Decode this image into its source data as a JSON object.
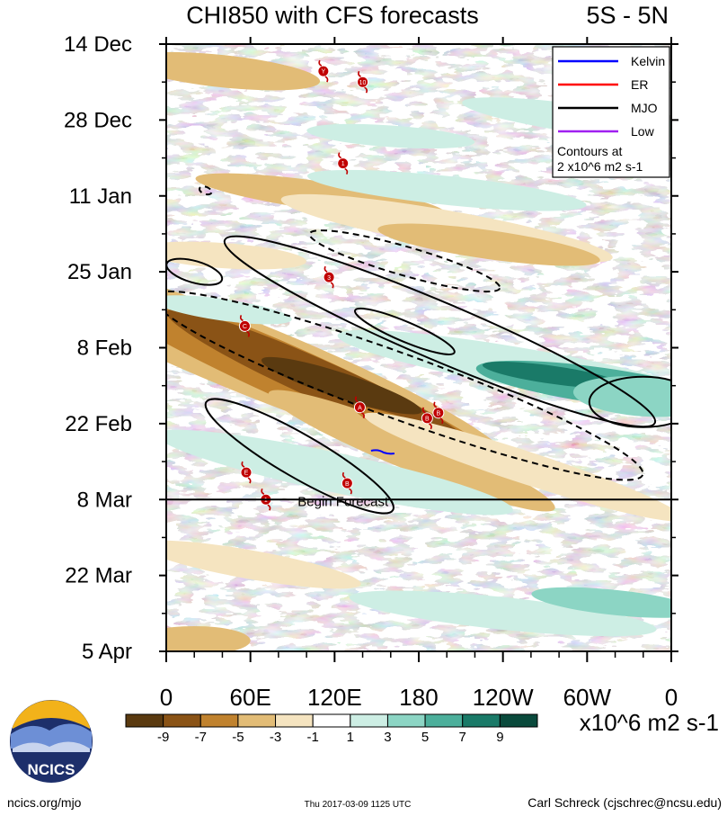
{
  "chart_data": {
    "type": "heatmap",
    "title": "CHI850 with CFS forecasts",
    "region": "5S - 5N",
    "x_tick_labels": [
      "0",
      "60E",
      "120E",
      "180",
      "120W",
      "60W",
      "0"
    ],
    "x_range_deg_east": [
      0,
      360
    ],
    "y_tick_labels": [
      "14 Dec",
      "28 Dec",
      "11 Jan",
      "25 Jan",
      "8 Feb",
      "22 Feb",
      "8 Mar",
      "22 Mar",
      "5 Apr"
    ],
    "y_range": [
      "14 Dec",
      "5 Apr"
    ],
    "forecast_start": "8 Mar",
    "forecast_label": "Begin Forecast",
    "legend": {
      "position": "top-right",
      "entries": [
        {
          "name": "Kelvin",
          "color": "#0000ff"
        },
        {
          "name": "ER",
          "color": "#ff0000"
        },
        {
          "name": "MJO",
          "color": "#000000"
        },
        {
          "name": "Low",
          "color": "#a020f0"
        }
      ],
      "note_line1": "Contours at",
      "note_line2": "2 x10^6 m2 s-1"
    },
    "colorbar": {
      "labels": [
        "-9",
        "-7",
        "-5",
        "-3",
        "-1",
        "1",
        "3",
        "5",
        "7",
        "9"
      ],
      "colors": [
        "#5a3a10",
        "#8a5316",
        "#c0822e",
        "#e2bc76",
        "#f5e4c0",
        "#ffffff",
        "#cdeee4",
        "#8cd5c4",
        "#4caf9b",
        "#1a7a68",
        "#0a4a3c"
      ],
      "units": "x10^6 m2 s-1"
    },
    "storms": [
      {
        "label": "Y",
        "lon": 112,
        "date": "19 Dec"
      },
      {
        "label": "10",
        "lon": 140,
        "date": "21 Dec"
      },
      {
        "label": "1",
        "lon": 126,
        "date": "5 Jan"
      },
      {
        "label": "3",
        "lon": 116,
        "date": "26 Jan"
      },
      {
        "label": "C",
        "lon": 56,
        "date": "4 Feb"
      },
      {
        "label": "A",
        "lon": 138,
        "date": "19 Feb"
      },
      {
        "label": "B",
        "lon": 186,
        "date": "21 Feb"
      },
      {
        "label": "B",
        "lon": 194,
        "date": "20 Feb"
      },
      {
        "label": "E",
        "lon": 57,
        "date": "3 Mar"
      },
      {
        "label": "B",
        "lon": 129,
        "date": "5 Mar"
      },
      {
        "label": "1",
        "lon": 71,
        "date": "8 Mar"
      }
    ]
  },
  "footer": {
    "url": "ncics.org/mjo",
    "timestamp": "Thu 2017-03-09 1125 UTC",
    "author": "Carl Schreck (cjschrec@ncsu.edu)"
  },
  "logo": {
    "text": "NCICS"
  }
}
